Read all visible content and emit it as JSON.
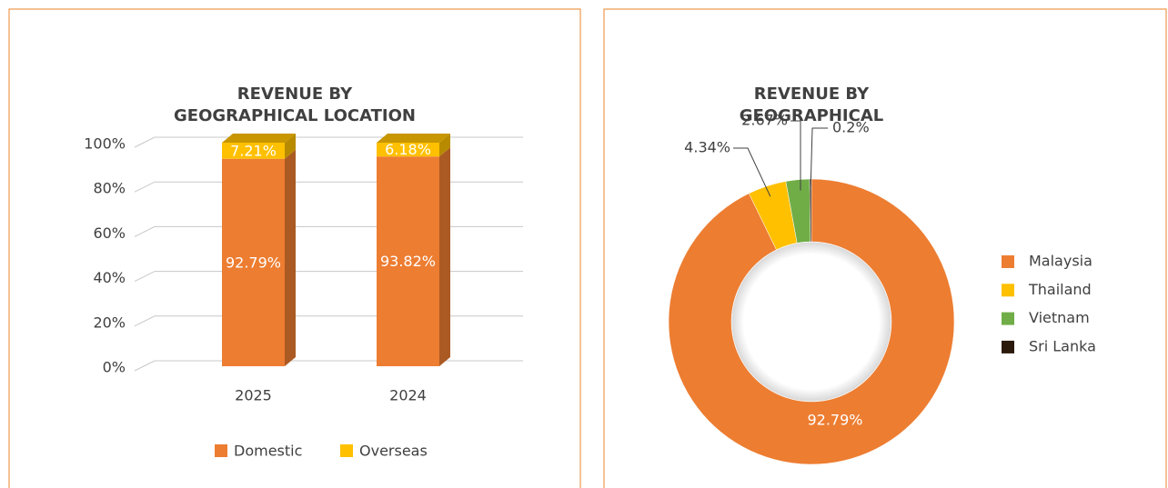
{
  "chart_data": [
    {
      "type": "bar",
      "stacked": true,
      "title": "REVENUE BY\nGEOGRAPHICAL LOCATION",
      "categories": [
        "2025",
        "2024"
      ],
      "series": [
        {
          "name": "Domestic",
          "color": "#ed7d31",
          "values": [
            92.79,
            93.82
          ],
          "value_labels": [
            "92.79%",
            "93.82%"
          ]
        },
        {
          "name": "Overseas",
          "color": "#ffc000",
          "values": [
            7.21,
            6.18
          ],
          "value_labels": [
            "7.21%",
            "6.18%"
          ]
        }
      ],
      "ylim": [
        0,
        100
      ],
      "yticks": [
        {
          "value": 0,
          "label": "0%"
        },
        {
          "value": 20,
          "label": "20%"
        },
        {
          "value": 40,
          "label": "40%"
        },
        {
          "value": 60,
          "label": "60%"
        },
        {
          "value": 80,
          "label": "80%"
        },
        {
          "value": 100,
          "label": "100%"
        }
      ],
      "grid": true,
      "legend": "bottom"
    },
    {
      "type": "pie",
      "donut": true,
      "title": "REVENUE BY\nGEOGRAPHICAL",
      "categories": [
        "Malaysia",
        "Thailand",
        "Vietnam",
        "Sri Lanka"
      ],
      "values": [
        92.79,
        4.34,
        2.67,
        0.2
      ],
      "value_labels": [
        "92.79%",
        "4.34%",
        "2.67%",
        "0.2%"
      ],
      "colors": [
        "#ed7d31",
        "#ffc000",
        "#70ad47",
        "#2b1a0c"
      ],
      "legend": "right"
    }
  ]
}
